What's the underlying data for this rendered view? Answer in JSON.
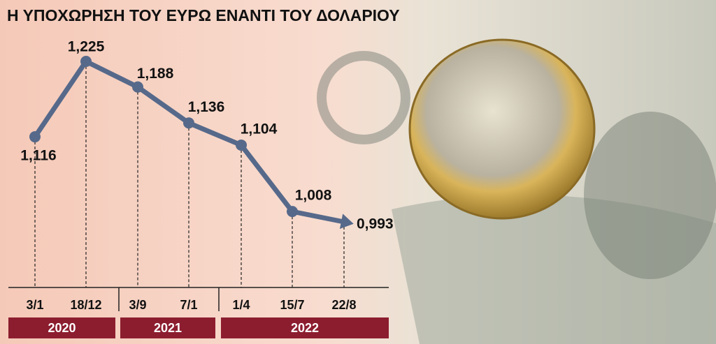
{
  "chart_data": {
    "type": "line",
    "title": "Η ΥΠΟΧΩΡΗΣΗ ΤΟΥ ΕΥΡΩ ΕΝΑΝΤΙ ΤΟΥ ΔΟΛΑΡΙΟΥ",
    "categories": [
      "3/1",
      "18/12",
      "3/9",
      "7/1",
      "1/4",
      "15/7",
      "22/8"
    ],
    "values": [
      1.116,
      1.225,
      1.188,
      1.136,
      1.104,
      1.008,
      0.993
    ],
    "value_labels": [
      "1,116",
      "1,225",
      "1,188",
      "1,136",
      "1,104",
      "1,008",
      "0,993"
    ],
    "years": [
      "2020",
      "2021",
      "2022"
    ],
    "color": "#56698a"
  }
}
